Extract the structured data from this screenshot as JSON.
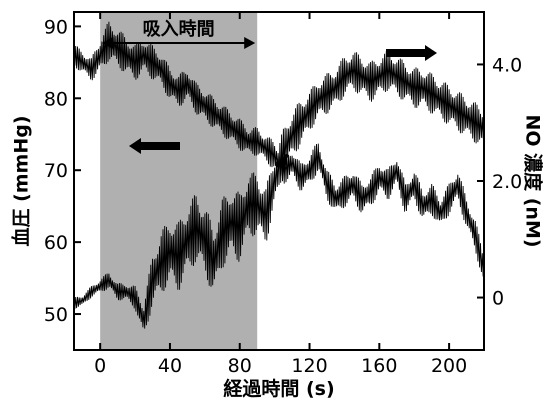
{
  "chart_data": {
    "type": "line",
    "xlabel": "経過時間 (s)",
    "ylabel": "血圧 (mmHg)",
    "y2label": "NO 濃度 (nM)",
    "xlim": [
      -15,
      220
    ],
    "ylim": [
      45,
      92
    ],
    "y2lim": [
      -0.9,
      4.9
    ],
    "xticks": [
      0,
      40,
      80,
      120,
      160,
      200
    ],
    "yticks": [
      50,
      60,
      70,
      80,
      90
    ],
    "y2ticks": [
      0,
      2.0,
      4.0
    ],
    "y2ticklabels": [
      "0",
      "2.0",
      "4.0"
    ],
    "shaded_region": {
      "x": [
        0,
        90
      ],
      "label": "吸入時間",
      "color": "#b0b0b0"
    },
    "series": [
      {
        "axis": "left",
        "color": "#000000",
        "x": [
          -15,
          -10,
          -5,
          0,
          5,
          10,
          15,
          20,
          25,
          30,
          35,
          40,
          45,
          50,
          55,
          60,
          65,
          70,
          75,
          80,
          85,
          90,
          95,
          100,
          105,
          110,
          115,
          120,
          125,
          130,
          135,
          140,
          145,
          150,
          155,
          160,
          165,
          170,
          175,
          180,
          185,
          190,
          195,
          200,
          205,
          210,
          215,
          220
        ],
        "y": [
          86,
          85,
          84,
          86,
          88,
          87,
          86,
          85,
          86,
          85,
          84,
          82,
          81,
          82,
          80,
          79,
          78,
          77,
          76,
          75,
          74,
          74,
          73,
          72,
          70,
          71,
          69,
          70,
          72,
          68,
          66,
          67,
          68,
          66,
          67,
          69,
          68,
          70,
          66,
          68,
          65,
          66,
          64,
          66,
          68,
          64,
          61,
          56
        ],
        "amplitude": [
          1.6,
          1.6,
          1.6,
          2.5,
          2.8,
          2.8,
          2.6,
          2.6,
          2.4,
          2.4,
          2.3,
          2.3,
          2.3,
          2.3,
          2.2,
          2.2,
          2.2,
          2.2,
          2.2,
          2.2,
          2.0,
          2.0,
          2.0,
          2.0,
          2.0,
          2.0,
          2.0,
          2.2,
          2.2,
          2.2,
          2.2,
          2.2,
          2.2,
          2.2,
          2.2,
          2.2,
          2.2,
          2.2,
          2.2,
          2.2,
          2.2,
          2.2,
          2.2,
          2.2,
          2.2,
          2.2,
          2.2,
          2.2
        ]
      },
      {
        "axis": "right",
        "color": "#000000",
        "x": [
          -15,
          -10,
          -5,
          0,
          5,
          10,
          15,
          20,
          25,
          30,
          35,
          40,
          45,
          50,
          55,
          60,
          65,
          70,
          75,
          80,
          85,
          90,
          95,
          100,
          105,
          110,
          115,
          120,
          125,
          130,
          135,
          140,
          145,
          150,
          155,
          160,
          165,
          170,
          175,
          180,
          185,
          190,
          195,
          200,
          205,
          210,
          215,
          220
        ],
        "y": [
          -0.1,
          -0.05,
          0.1,
          0.2,
          0.3,
          0.1,
          0.1,
          0.0,
          -0.4,
          0.3,
          0.6,
          0.8,
          0.7,
          1.0,
          1.2,
          1.0,
          0.6,
          1.1,
          1.3,
          1.2,
          1.6,
          1.6,
          1.4,
          2.0,
          2.5,
          2.8,
          3.0,
          3.2,
          3.4,
          3.5,
          3.6,
          3.8,
          3.9,
          3.8,
          3.7,
          3.8,
          3.9,
          3.8,
          3.7,
          3.6,
          3.6,
          3.5,
          3.4,
          3.3,
          3.2,
          3.1,
          3.0,
          2.9
        ],
        "amplitude": [
          0.1,
          0.1,
          0.1,
          0.12,
          0.15,
          0.15,
          0.15,
          0.2,
          0.3,
          0.45,
          0.55,
          0.55,
          0.6,
          0.6,
          0.6,
          0.6,
          0.6,
          0.6,
          0.6,
          0.6,
          0.55,
          0.55,
          0.5,
          0.45,
          0.4,
          0.4,
          0.4,
          0.35,
          0.35,
          0.35,
          0.35,
          0.35,
          0.35,
          0.35,
          0.35,
          0.35,
          0.35,
          0.35,
          0.35,
          0.35,
          0.35,
          0.35,
          0.35,
          0.35,
          0.35,
          0.35,
          0.35,
          0.35
        ]
      }
    ],
    "annotations": [
      {
        "type": "arrow",
        "direction": "left",
        "refers_to": "left-axis"
      },
      {
        "type": "arrow",
        "direction": "right",
        "refers_to": "right-axis"
      }
    ]
  }
}
